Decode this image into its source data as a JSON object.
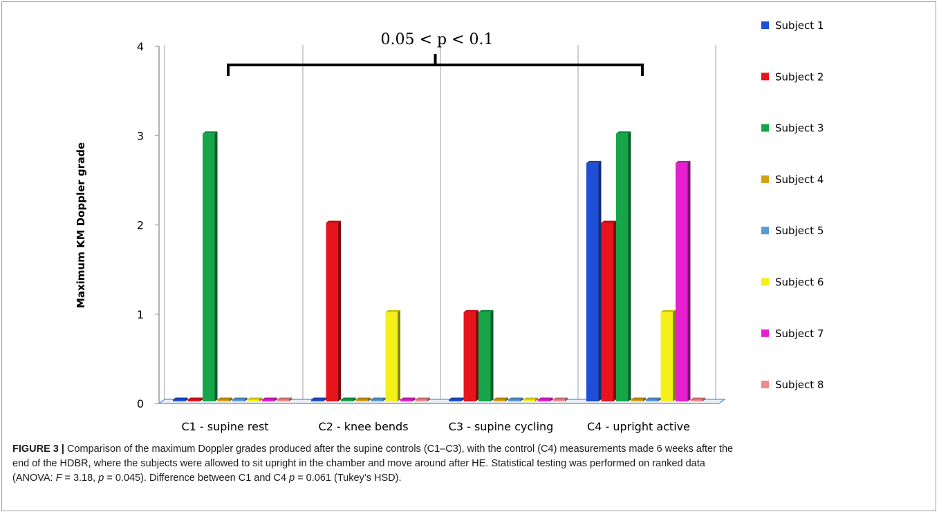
{
  "chart_data": {
    "type": "bar",
    "title": "",
    "xlabel": "",
    "ylabel": "Maximum KM Doppler grade",
    "ylim": [
      0,
      4
    ],
    "yticks": [
      "0",
      "1",
      "2",
      "3",
      "4"
    ],
    "categories": [
      "C1 - supine rest",
      "C2 - knee bends",
      "C3 - supine cycling",
      "C4 - upright active"
    ],
    "series": [
      {
        "name": "Subject 1",
        "color": "#1f4fd6",
        "values": [
          0,
          0,
          0,
          2.67
        ]
      },
      {
        "name": "Subject 2",
        "color": "#e8141c",
        "values": [
          0,
          2,
          1,
          2
        ]
      },
      {
        "name": "Subject 3",
        "color": "#16a64a",
        "values": [
          3,
          0,
          1,
          3
        ]
      },
      {
        "name": "Subject 4",
        "color": "#d4a015",
        "values": [
          0,
          0,
          0,
          0
        ]
      },
      {
        "name": "Subject 5",
        "color": "#5b9bd5",
        "values": [
          0,
          0,
          0,
          0
        ]
      },
      {
        "name": "Subject 6",
        "color": "#f5f01a",
        "values": [
          0,
          1,
          0,
          1
        ]
      },
      {
        "name": "Subject 7",
        "color": "#e61fcf",
        "values": [
          0,
          0,
          0,
          2.67
        ]
      },
      {
        "name": "Subject 8",
        "color": "#f08a8a",
        "values": [
          0,
          0,
          0,
          0
        ]
      }
    ],
    "legend": "right",
    "grid": "vertical category dividers",
    "annotation": {
      "text": "0.05 < p <  0.1",
      "from_category": "C1 - supine rest",
      "to_category": "C4 - upright active"
    }
  },
  "caption": {
    "label": "FIGURE 3 |",
    "line1": " Comparison of the maximum Doppler grades produced after the supine controls (C1–C3), with the control (C4) measurements made 6 weeks after the",
    "line2": "end of the HDBR, where the subjects were allowed to sit upright in the chamber and move around after HE. Statistical testing was performed on ranked data",
    "line3_a": "(ANOVA: ",
    "line3_F": "F",
    "line3_b": " = 3.18, ",
    "line3_p1": "p",
    "line3_c": " = 0.045). Difference between C1 and C4 ",
    "line3_p2": "p",
    "line3_d": " = 0.061 (Tukey’s HSD)."
  }
}
